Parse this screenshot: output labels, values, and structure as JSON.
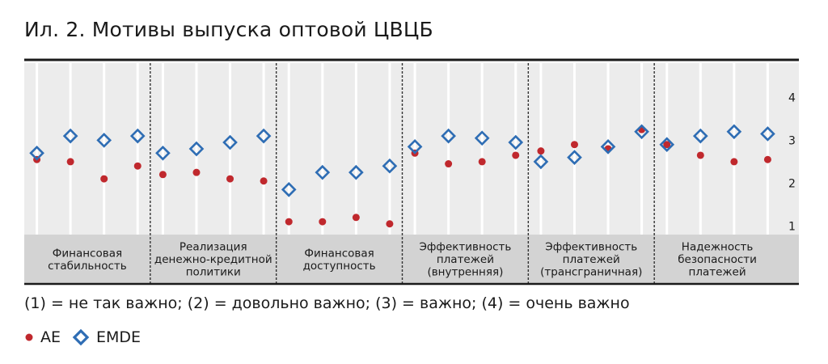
{
  "title": "Ил. 2. Мотивы выпуска оптовой ЦВЦБ",
  "note": "(1) = не так важно; (2) = довольно важно; (3) = важно; (4) = очень важно",
  "colors": {
    "ae": "#c0282d",
    "emde": "#2e6db4",
    "band": "#d3d3d3",
    "plot_bg": "#ececec"
  },
  "chart_data": {
    "type": "scatter",
    "ylim": [
      0.8,
      4.8
    ],
    "yticks": [
      "1",
      "2",
      "3",
      "4"
    ],
    "groups": [
      {
        "label": "Финансовая\nстабильность",
        "points": 4
      },
      {
        "label": "Реализация\nденежно-кредитной\nполитики",
        "points": 4
      },
      {
        "label": "Финансовая\nдоступность",
        "points": 4
      },
      {
        "label": "Эффективность\nплатежей\n(внутренняя)",
        "points": 4
      },
      {
        "label": "Эффективность\nплатежей\n(трансграничная)",
        "points": 4
      },
      {
        "label": "Надежность\nбезопасности\nплатежей",
        "points": 4
      }
    ],
    "series": [
      {
        "name": "AE",
        "marker": "circle",
        "values": [
          2.55,
          2.5,
          2.1,
          2.4,
          2.2,
          2.25,
          2.1,
          2.05,
          1.1,
          1.1,
          1.2,
          1.05,
          2.7,
          2.45,
          2.5,
          2.65,
          2.75,
          2.9,
          2.8,
          3.25,
          2.9,
          2.65,
          2.5,
          2.55
        ]
      },
      {
        "name": "EMDE",
        "marker": "diamond",
        "values": [
          2.7,
          3.1,
          3.0,
          3.1,
          2.7,
          2.8,
          2.95,
          3.1,
          1.85,
          2.25,
          2.25,
          2.4,
          2.85,
          3.1,
          3.05,
          2.95,
          2.5,
          2.6,
          2.85,
          3.2,
          2.9,
          3.1,
          3.2,
          3.15
        ]
      }
    ]
  }
}
